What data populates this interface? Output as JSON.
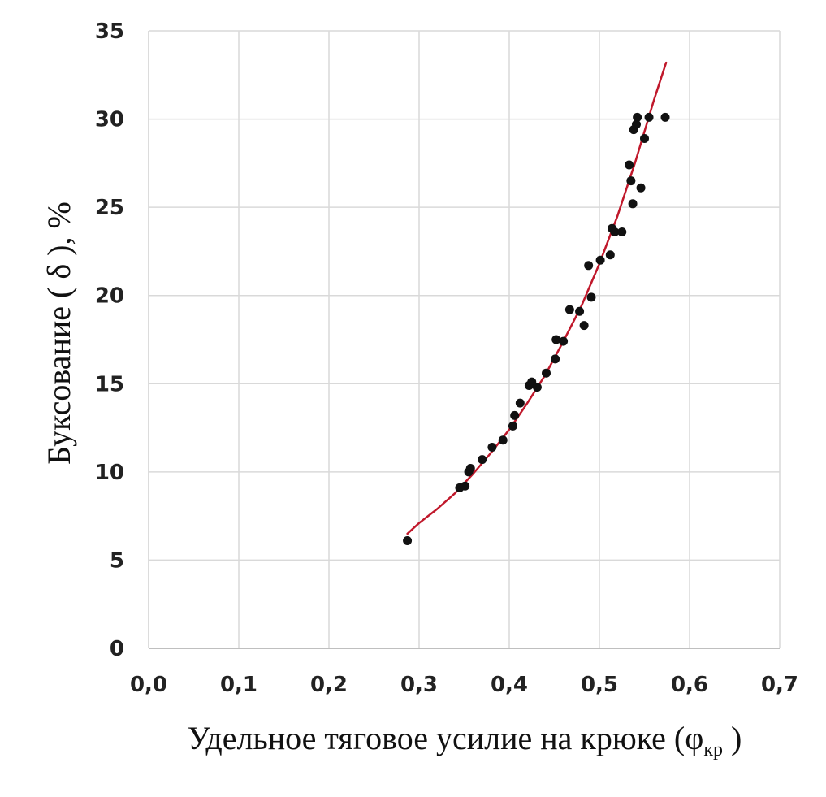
{
  "chart_data": {
    "type": "scatter",
    "xlabel": "Удельное тяговое усилие на крюке (φ",
    "xlabel_subscript": "кр",
    "xlabel_tail": " )",
    "ylabel": "Буксование ( δ ), %",
    "xlim": [
      0,
      0.7
    ],
    "ylim": [
      0,
      35
    ],
    "x_ticks": [
      "0,0",
      "0,1",
      "0,2",
      "0,3",
      "0,4",
      "0,5",
      "0,6",
      "0,7"
    ],
    "y_ticks": [
      "0",
      "5",
      "10",
      "15",
      "20",
      "25",
      "30",
      "35"
    ],
    "x_tick_values": [
      0,
      0.1,
      0.2,
      0.3,
      0.4,
      0.5,
      0.6,
      0.7
    ],
    "y_tick_values": [
      0,
      5,
      10,
      15,
      20,
      25,
      30,
      35
    ],
    "grid": true,
    "marker_color": "#111111",
    "curve_color": "#c0182b",
    "points": [
      {
        "x": 0.287,
        "y": 6.1
      },
      {
        "x": 0.345,
        "y": 9.1
      },
      {
        "x": 0.351,
        "y": 9.2
      },
      {
        "x": 0.355,
        "y": 10.0
      },
      {
        "x": 0.357,
        "y": 10.2
      },
      {
        "x": 0.37,
        "y": 10.7
      },
      {
        "x": 0.381,
        "y": 11.4
      },
      {
        "x": 0.393,
        "y": 11.8
      },
      {
        "x": 0.404,
        "y": 12.6
      },
      {
        "x": 0.406,
        "y": 13.2
      },
      {
        "x": 0.412,
        "y": 13.9
      },
      {
        "x": 0.422,
        "y": 14.9
      },
      {
        "x": 0.425,
        "y": 15.1
      },
      {
        "x": 0.431,
        "y": 14.8
      },
      {
        "x": 0.441,
        "y": 15.6
      },
      {
        "x": 0.451,
        "y": 16.4
      },
      {
        "x": 0.452,
        "y": 17.5
      },
      {
        "x": 0.46,
        "y": 17.4
      },
      {
        "x": 0.467,
        "y": 19.2
      },
      {
        "x": 0.478,
        "y": 19.1
      },
      {
        "x": 0.483,
        "y": 18.3
      },
      {
        "x": 0.488,
        "y": 21.7
      },
      {
        "x": 0.491,
        "y": 19.9
      },
      {
        "x": 0.501,
        "y": 22.0
      },
      {
        "x": 0.512,
        "y": 22.3
      },
      {
        "x": 0.514,
        "y": 23.8
      },
      {
        "x": 0.517,
        "y": 23.6
      },
      {
        "x": 0.525,
        "y": 23.6
      },
      {
        "x": 0.533,
        "y": 27.4
      },
      {
        "x": 0.535,
        "y": 26.5
      },
      {
        "x": 0.537,
        "y": 25.2
      },
      {
        "x": 0.538,
        "y": 29.4
      },
      {
        "x": 0.541,
        "y": 29.7
      },
      {
        "x": 0.542,
        "y": 30.1
      },
      {
        "x": 0.546,
        "y": 26.1
      },
      {
        "x": 0.55,
        "y": 28.9
      },
      {
        "x": 0.555,
        "y": 30.1
      },
      {
        "x": 0.573,
        "y": 30.1
      }
    ],
    "fit_curve": [
      {
        "x": 0.287,
        "y": 6.5
      },
      {
        "x": 0.3,
        "y": 7.1
      },
      {
        "x": 0.32,
        "y": 7.9
      },
      {
        "x": 0.34,
        "y": 8.8
      },
      {
        "x": 0.36,
        "y": 9.9
      },
      {
        "x": 0.38,
        "y": 11.1
      },
      {
        "x": 0.4,
        "y": 12.4
      },
      {
        "x": 0.42,
        "y": 13.9
      },
      {
        "x": 0.44,
        "y": 15.5
      },
      {
        "x": 0.46,
        "y": 17.4
      },
      {
        "x": 0.48,
        "y": 19.4
      },
      {
        "x": 0.5,
        "y": 21.8
      },
      {
        "x": 0.52,
        "y": 24.5
      },
      {
        "x": 0.54,
        "y": 27.6
      },
      {
        "x": 0.56,
        "y": 31.0
      },
      {
        "x": 0.574,
        "y": 33.2
      }
    ]
  }
}
